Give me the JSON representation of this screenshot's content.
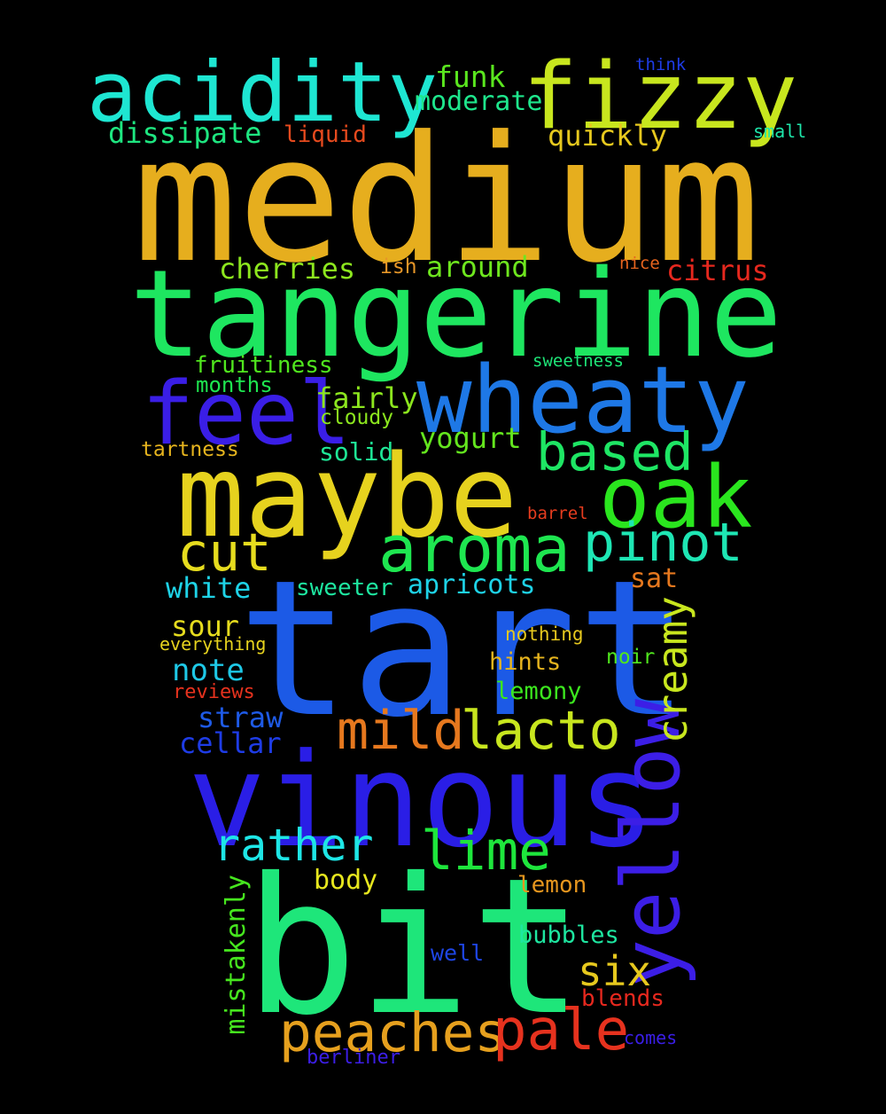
{
  "words": [
    {
      "text": "medium",
      "color": "#e6ae1e"
    },
    {
      "text": "tart",
      "color": "#1c5ae6"
    },
    {
      "text": "bit",
      "color": "#1ee67a"
    },
    {
      "text": "tangerine",
      "color": "#1ee660"
    },
    {
      "text": "vinous",
      "color": "#2a1ee6"
    },
    {
      "text": "maybe",
      "color": "#e6d21e"
    },
    {
      "text": "wheaty",
      "color": "#1e78e6"
    },
    {
      "text": "acidity",
      "color": "#1ee6d2"
    },
    {
      "text": "fizzy",
      "color": "#c8e61e"
    },
    {
      "text": "feel",
      "color": "#3a1ee6"
    },
    {
      "text": "yellow",
      "color": "#3c1ee6"
    },
    {
      "text": "oak",
      "color": "#2ae61e"
    },
    {
      "text": "aroma",
      "color": "#1ee650"
    },
    {
      "text": "pinot",
      "color": "#1ee6b4"
    },
    {
      "text": "peaches",
      "color": "#e6a01e"
    },
    {
      "text": "pale",
      "color": "#e6321e"
    },
    {
      "text": "lacto",
      "color": "#c8e61e"
    },
    {
      "text": "mild",
      "color": "#e6781e"
    },
    {
      "text": "lime",
      "color": "#1ee63c"
    },
    {
      "text": "based",
      "color": "#1ee664"
    },
    {
      "text": "cut",
      "color": "#e6dc1e"
    },
    {
      "text": "rather",
      "color": "#1ee6e6"
    },
    {
      "text": "creamy",
      "color": "#c8e61e"
    },
    {
      "text": "six",
      "color": "#e6c81e"
    },
    {
      "text": "funk",
      "color": "#5ae61e"
    },
    {
      "text": "moderate",
      "color": "#1ee68c"
    },
    {
      "text": "dissipate",
      "color": "#1ee680"
    },
    {
      "text": "liquid",
      "color": "#e64a1e"
    },
    {
      "text": "quickly",
      "color": "#e6c81e"
    },
    {
      "text": "think",
      "color": "#1e3ce6"
    },
    {
      "text": "small",
      "color": "#1ee6aa"
    },
    {
      "text": "cherries",
      "color": "#8ce61e"
    },
    {
      "text": "ish",
      "color": "#e69628"
    },
    {
      "text": "around",
      "color": "#6ee61e"
    },
    {
      "text": "nice",
      "color": "#e6641e"
    },
    {
      "text": "citrus",
      "color": "#e6281e"
    },
    {
      "text": "fruitiness",
      "color": "#50e61e"
    },
    {
      "text": "sweetness",
      "color": "#1ee678"
    },
    {
      "text": "months",
      "color": "#1ee650"
    },
    {
      "text": "fairly",
      "color": "#8ce61e"
    },
    {
      "text": "cloudy",
      "color": "#8ce61e"
    },
    {
      "text": "yogurt",
      "color": "#64e61e"
    },
    {
      "text": "tartness",
      "color": "#e6b41e"
    },
    {
      "text": "solid",
      "color": "#1ee696"
    },
    {
      "text": "barrel",
      "color": "#e63c1e"
    },
    {
      "text": "white",
      "color": "#1ed2e6"
    },
    {
      "text": "sweeter",
      "color": "#1ee6a0"
    },
    {
      "text": "apricots",
      "color": "#1ed2e6"
    },
    {
      "text": "sat",
      "color": "#e6781e"
    },
    {
      "text": "sour",
      "color": "#e6dc1e"
    },
    {
      "text": "everything",
      "color": "#e6d21e"
    },
    {
      "text": "nothing",
      "color": "#e6c81e"
    },
    {
      "text": "hints",
      "color": "#e6b41e"
    },
    {
      "text": "noir",
      "color": "#50e61e"
    },
    {
      "text": "note",
      "color": "#1ec8e6"
    },
    {
      "text": "reviews",
      "color": "#e6321e"
    },
    {
      "text": "lemony",
      "color": "#3ce61e"
    },
    {
      "text": "straw",
      "color": "#1e5ae6"
    },
    {
      "text": "cellar",
      "color": "#1e3ce6"
    },
    {
      "text": "body",
      "color": "#e6e61e"
    },
    {
      "text": "lemon",
      "color": "#e6961e"
    },
    {
      "text": "mistakenly",
      "color": "#46e61e"
    },
    {
      "text": "bubbles",
      "color": "#1ee6a0"
    },
    {
      "text": "well",
      "color": "#1e46e6"
    },
    {
      "text": "blends",
      "color": "#e6281e"
    },
    {
      "text": "comes",
      "color": "#3a1ee6"
    },
    {
      "text": "berliner",
      "color": "#3c1ee6"
    }
  ]
}
